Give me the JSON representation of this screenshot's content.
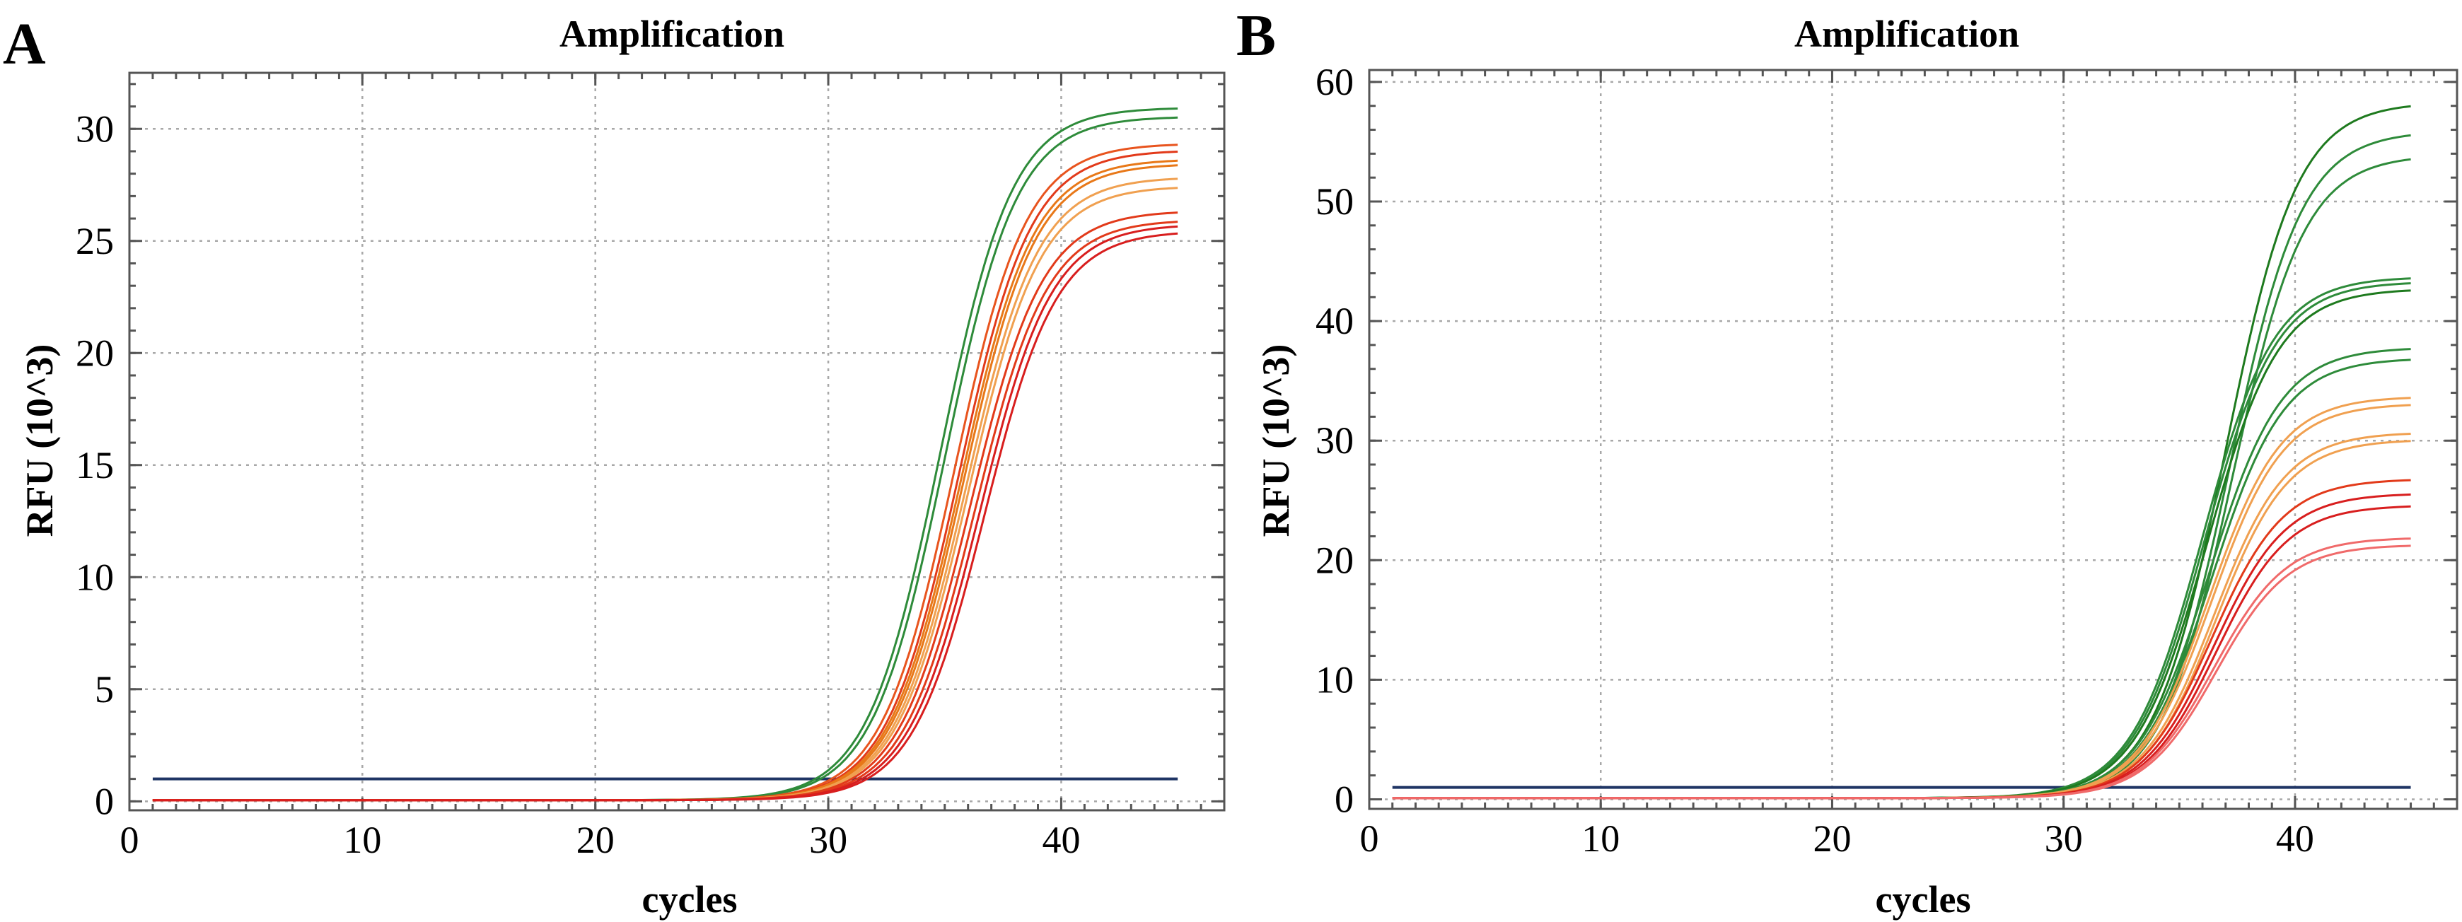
{
  "chart_data": [
    {
      "panel_label": "A",
      "type": "line",
      "title": "Amplification",
      "xlabel": "cycles",
      "ylabel": "RFU (10^3)",
      "xlim": [
        0,
        47
      ],
      "ylim": [
        -0.4,
        32.5
      ],
      "x_ticks": [
        0,
        10,
        20,
        30,
        40
      ],
      "y_ticks": [
        0,
        5,
        10,
        15,
        20,
        25,
        30
      ],
      "x_minor_step": 1,
      "y_minor_step": 1,
      "grid": true,
      "threshold": {
        "value": 1.0,
        "x_range": [
          1,
          45
        ],
        "color": "#1f3565"
      },
      "series": [
        {
          "color": "#2e8b3a",
          "ct": 34.8,
          "plateau": 30.9,
          "baseline": 0.05
        },
        {
          "color": "#2e8b3a",
          "ct": 35.0,
          "plateau": 30.5,
          "baseline": 0.05
        },
        {
          "color": "#e8541e",
          "ct": 35.4,
          "plateau": 29.3,
          "baseline": 0.05
        },
        {
          "color": "#e23a1a",
          "ct": 35.6,
          "plateau": 29.0,
          "baseline": 0.05
        },
        {
          "color": "#e87818",
          "ct": 35.7,
          "plateau": 28.6,
          "baseline": 0.05
        },
        {
          "color": "#e87818",
          "ct": 35.8,
          "plateau": 28.4,
          "baseline": 0.05
        },
        {
          "color": "#f0a050",
          "ct": 35.9,
          "plateau": 27.8,
          "baseline": 0.05
        },
        {
          "color": "#f0a050",
          "ct": 36.0,
          "plateau": 27.4,
          "baseline": 0.05
        },
        {
          "color": "#e23a1a",
          "ct": 36.1,
          "plateau": 26.3,
          "baseline": 0.05
        },
        {
          "color": "#e23a1a",
          "ct": 36.3,
          "plateau": 25.9,
          "baseline": 0.05
        },
        {
          "color": "#d81e1e",
          "ct": 36.5,
          "plateau": 25.7,
          "baseline": 0.05
        },
        {
          "color": "#d81e1e",
          "ct": 36.7,
          "plateau": 25.4,
          "baseline": 0.05
        }
      ]
    },
    {
      "panel_label": "B",
      "type": "line",
      "title": "Amplification",
      "xlabel": "cycles",
      "ylabel": "RFU (10^3)",
      "xlim": [
        0,
        47
      ],
      "ylim": [
        -0.8,
        61.0
      ],
      "x_ticks": [
        0,
        10,
        20,
        30,
        40
      ],
      "y_ticks": [
        0,
        10,
        20,
        30,
        40,
        50,
        60
      ],
      "x_minor_step": 1,
      "y_minor_step": 2,
      "grid": true,
      "threshold": {
        "value": 1.0,
        "x_range": [
          1,
          45
        ],
        "color": "#1f3565"
      },
      "series": [
        {
          "color": "#1e7a1e",
          "ct": 37.0,
          "plateau": 58.2,
          "baseline": 0.1
        },
        {
          "color": "#2e8b3a",
          "ct": 37.2,
          "plateau": 55.8,
          "baseline": 0.1
        },
        {
          "color": "#2e8b3a",
          "ct": 37.3,
          "plateau": 53.8,
          "baseline": 0.1
        },
        {
          "color": "#2e8b3a",
          "ct": 36.0,
          "plateau": 43.6,
          "baseline": 0.1
        },
        {
          "color": "#2e8b3a",
          "ct": 36.1,
          "plateau": 43.2,
          "baseline": 0.1
        },
        {
          "color": "#1e7a1e",
          "ct": 36.2,
          "plateau": 42.6,
          "baseline": 0.1
        },
        {
          "color": "#2e8b3a",
          "ct": 36.3,
          "plateau": 37.7,
          "baseline": 0.1
        },
        {
          "color": "#2e8b3a",
          "ct": 36.4,
          "plateau": 36.8,
          "baseline": 0.1
        },
        {
          "color": "#f0a050",
          "ct": 36.3,
          "plateau": 33.6,
          "baseline": 0.1
        },
        {
          "color": "#f0a050",
          "ct": 36.4,
          "plateau": 33.0,
          "baseline": 0.1
        },
        {
          "color": "#f0a050",
          "ct": 36.5,
          "plateau": 30.6,
          "baseline": 0.1
        },
        {
          "color": "#f0a050",
          "ct": 36.6,
          "plateau": 30.0,
          "baseline": 0.1
        },
        {
          "color": "#e23a1a",
          "ct": 36.4,
          "plateau": 26.7,
          "baseline": 0.1
        },
        {
          "color": "#d81e1e",
          "ct": 36.5,
          "plateau": 25.5,
          "baseline": 0.1
        },
        {
          "color": "#d81e1e",
          "ct": 36.6,
          "plateau": 24.5,
          "baseline": 0.1
        },
        {
          "color": "#f06a6a",
          "ct": 36.5,
          "plateau": 21.8,
          "baseline": 0.1
        },
        {
          "color": "#f06a6a",
          "ct": 36.6,
          "plateau": 21.2,
          "baseline": 0.1
        }
      ]
    }
  ]
}
